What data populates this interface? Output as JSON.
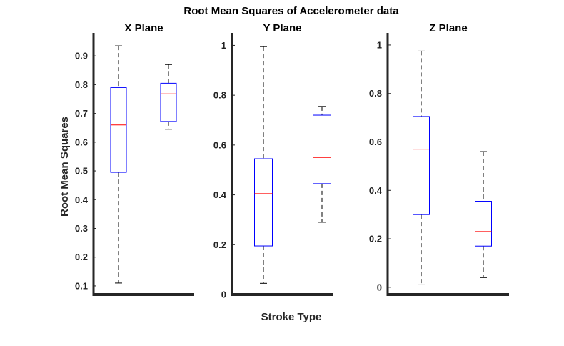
{
  "chart_data": {
    "type": "boxplot",
    "title": "Root Mean Squares of Accelerometer data",
    "xlabel": "Stroke Type",
    "ylabel": "Root Mean Squares",
    "colors": {
      "box": "#0000ff",
      "median": "#ff0000",
      "whisker": "#000000",
      "axis": "#262626"
    },
    "panels": [
      {
        "title": "X Plane",
        "ylim": [
          0.07,
          0.98
        ],
        "yticks": [
          0.1,
          0.2,
          0.3,
          0.4,
          0.5,
          0.6,
          0.7,
          0.8,
          0.9
        ],
        "boxes": [
          {
            "min": 0.11,
            "q1": 0.495,
            "median": 0.66,
            "q3": 0.79,
            "max": 0.935
          },
          {
            "min": 0.645,
            "q1": 0.672,
            "median": 0.768,
            "q3": 0.805,
            "max": 0.87
          }
        ]
      },
      {
        "title": "Y Plane",
        "ylim": [
          0,
          1.05
        ],
        "yticks": [
          0,
          0.2,
          0.4,
          0.6,
          0.8,
          1
        ],
        "boxes": [
          {
            "min": 0.045,
            "q1": 0.195,
            "median": 0.405,
            "q3": 0.545,
            "max": 0.995
          },
          {
            "min": 0.29,
            "q1": 0.445,
            "median": 0.55,
            "q3": 0.72,
            "max": 0.755
          }
        ]
      },
      {
        "title": "Z Plane",
        "ylim": [
          -0.03,
          1.05
        ],
        "yticks": [
          0,
          0.2,
          0.4,
          0.6,
          0.8,
          1
        ],
        "boxes": [
          {
            "min": 0.01,
            "q1": 0.3,
            "median": 0.57,
            "q3": 0.705,
            "max": 0.975
          },
          {
            "min": 0.04,
            "q1": 0.17,
            "median": 0.23,
            "q3": 0.355,
            "max": 0.56
          }
        ]
      }
    ]
  }
}
